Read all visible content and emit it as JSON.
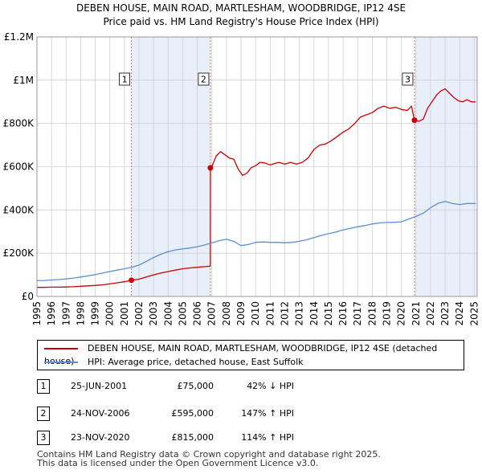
{
  "chart_data": {
    "type": "line",
    "title": "DEBEN HOUSE, MAIN ROAD, MARTLESHAM, WOODBRIDGE, IP12 4SE",
    "subtitle": "Price paid vs. HM Land Registry's House Price Index (HPI)",
    "xlabel": "",
    "ylabel": "",
    "xlim": [
      1995,
      2025.2
    ],
    "ylim": [
      0,
      1200000
    ],
    "x_ticks": [
      "1995",
      "1996",
      "1997",
      "1998",
      "1999",
      "2000",
      "2001",
      "2002",
      "2003",
      "2004",
      "2005",
      "2006",
      "2007",
      "2008",
      "2009",
      "2010",
      "2011",
      "2012",
      "2013",
      "2014",
      "2015",
      "2016",
      "2017",
      "2018",
      "2019",
      "2020",
      "2021",
      "2022",
      "2023",
      "2024",
      "2025"
    ],
    "y_ticks": [
      {
        "value": 0,
        "label": "£0"
      },
      {
        "value": 200000,
        "label": "£200K"
      },
      {
        "value": 400000,
        "label": "£400K"
      },
      {
        "value": 600000,
        "label": "£600K"
      },
      {
        "value": 800000,
        "label": "£800K"
      },
      {
        "value": 1000000,
        "label": "£1M"
      },
      {
        "value": 1200000,
        "label": "£1.2M"
      }
    ],
    "grid": true,
    "shaded_ranges": [
      [
        2001.48,
        2006.9
      ],
      [
        2020.9,
        2025.2
      ]
    ],
    "series": [
      {
        "name": "DEBEN HOUSE, MAIN ROAD, MARTLESHAM, WOODBRIDGE, IP12 4SE (detached house)",
        "color": "#cc0000",
        "x": [
          1995,
          1995.5,
          1996,
          1996.5,
          1997,
          1997.5,
          1998,
          1998.5,
          1999,
          1999.5,
          2000,
          2000.5,
          2001,
          2001.48,
          2001.48,
          2002,
          2002.5,
          2003,
          2003.5,
          2004,
          2004.5,
          2005,
          2005.5,
          2006,
          2006.5,
          2006.89,
          2006.9,
          2007,
          2007.3,
          2007.6,
          2007.9,
          2008.2,
          2008.5,
          2008.8,
          2009.1,
          2009.4,
          2009.7,
          2010,
          2010.3,
          2010.6,
          2011,
          2011.3,
          2011.6,
          2012,
          2012.4,
          2012.8,
          2013.2,
          2013.6,
          2014,
          2014.4,
          2014.8,
          2015.2,
          2015.6,
          2016,
          2016.4,
          2016.8,
          2017.2,
          2017.6,
          2018,
          2018.4,
          2018.8,
          2019.2,
          2019.6,
          2020,
          2020.4,
          2020.7,
          2020.89,
          2020.9,
          2021.2,
          2021.5,
          2021.8,
          2022.1,
          2022.4,
          2022.7,
          2023,
          2023.3,
          2023.6,
          2023.9,
          2024.2,
          2024.5,
          2024.8,
          2025.1
        ],
        "values": [
          42000,
          42000,
          43000,
          43000,
          44000,
          45000,
          47000,
          49000,
          51000,
          54000,
          58000,
          63000,
          68000,
          75000,
          75000,
          80000,
          90000,
          100000,
          108000,
          115000,
          122000,
          128000,
          132000,
          135000,
          138000,
          140000,
          595000,
          600000,
          650000,
          670000,
          655000,
          640000,
          635000,
          590000,
          560000,
          570000,
          595000,
          605000,
          620000,
          618000,
          608000,
          615000,
          620000,
          612000,
          620000,
          612000,
          620000,
          640000,
          680000,
          700000,
          705000,
          720000,
          740000,
          760000,
          775000,
          800000,
          830000,
          840000,
          850000,
          870000,
          880000,
          870000,
          875000,
          865000,
          860000,
          880000,
          815000,
          815000,
          810000,
          820000,
          870000,
          900000,
          930000,
          950000,
          960000,
          940000,
          920000,
          905000,
          900000,
          910000,
          900000,
          900000
        ]
      },
      {
        "name": "HPI: Average price, detached house, East Suffolk",
        "color": "#5b8fd0",
        "x": [
          1995,
          1995.5,
          1996,
          1996.5,
          1997,
          1997.5,
          1998,
          1998.5,
          1999,
          1999.5,
          2000,
          2000.5,
          2001,
          2001.5,
          2002,
          2002.5,
          2003,
          2003.5,
          2004,
          2004.5,
          2005,
          2005.5,
          2006,
          2006.5,
          2007,
          2007.5,
          2008,
          2008.5,
          2009,
          2009.5,
          2010,
          2010.5,
          2011,
          2011.5,
          2012,
          2012.5,
          2013,
          2013.5,
          2014,
          2014.5,
          2015,
          2015.5,
          2016,
          2016.5,
          2017,
          2017.5,
          2018,
          2018.5,
          2019,
          2019.5,
          2020,
          2020.5,
          2021,
          2021.5,
          2022,
          2022.5,
          2023,
          2023.5,
          2024,
          2024.5,
          2025.1
        ],
        "values": [
          73000,
          74000,
          76000,
          78000,
          81000,
          85000,
          90000,
          95000,
          101000,
          108000,
          115000,
          122000,
          128000,
          135000,
          145000,
          162000,
          180000,
          195000,
          207000,
          215000,
          220000,
          224000,
          230000,
          238000,
          248000,
          258000,
          265000,
          255000,
          235000,
          240000,
          250000,
          252000,
          250000,
          250000,
          248000,
          250000,
          255000,
          262000,
          272000,
          282000,
          290000,
          298000,
          308000,
          315000,
          322000,
          328000,
          335000,
          340000,
          342000,
          343000,
          345000,
          358000,
          370000,
          385000,
          410000,
          430000,
          440000,
          430000,
          425000,
          430000,
          430000
        ]
      }
    ],
    "annotations": [
      {
        "label": "1",
        "x": 2001.48,
        "value": 75000
      },
      {
        "label": "2",
        "x": 2006.9,
        "value": 595000
      },
      {
        "label": "3",
        "x": 2020.9,
        "value": 815000
      }
    ]
  },
  "legend": {
    "property_label": "DEBEN HOUSE, MAIN ROAD, MARTLESHAM, WOODBRIDGE, IP12 4SE (detached house)",
    "hpi_label": "HPI: Average price, detached house, East Suffolk"
  },
  "sales": [
    {
      "num": "1",
      "date": "25-JUN-2001",
      "price": "£75,000",
      "hpi": "42% ↓ HPI"
    },
    {
      "num": "2",
      "date": "24-NOV-2006",
      "price": "£595,000",
      "hpi": "147% ↑ HPI"
    },
    {
      "num": "3",
      "date": "23-NOV-2020",
      "price": "£815,000",
      "hpi": "114% ↑ HPI"
    }
  ],
  "footer": {
    "line1": "Contains HM Land Registry data © Crown copyright and database right 2025.",
    "line2": "This data is licensed under the Open Government Licence v3.0."
  },
  "colors": {
    "property": "#cc0000",
    "hpi": "#5b8fd0",
    "shade": "#e8eefa",
    "grid": "#d0d0d0"
  }
}
